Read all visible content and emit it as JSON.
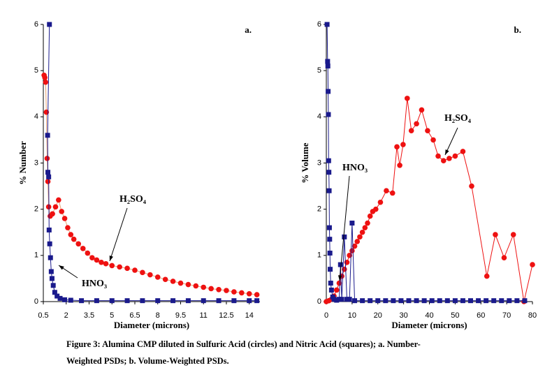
{
  "chart_data": [
    {
      "type": "scatter",
      "label": "a.",
      "xlabel": "Diameter (microns)",
      "ylabel": "% Number",
      "xlim": [
        0.5,
        14.7
      ],
      "ylim": [
        0,
        6
      ],
      "xticks": [
        0.5,
        2,
        3.5,
        5,
        6.5,
        8,
        9.5,
        11,
        12.5,
        14
      ],
      "yticks": [
        0,
        1,
        2,
        3,
        4,
        5,
        6
      ],
      "annotations": [
        "H₂SO₄",
        "HNO₃"
      ],
      "series": [
        {
          "name": "H₂SO₄",
          "color": "#ee1111",
          "line_color": "#e8a070",
          "marker": "circle",
          "x": [
            0.55,
            0.6,
            0.65,
            0.7,
            0.75,
            0.8,
            0.85,
            0.95,
            1.1,
            1.3,
            1.5,
            1.7,
            1.9,
            2.1,
            2.3,
            2.5,
            2.8,
            3.1,
            3.4,
            3.7,
            4.0,
            4.3,
            4.6,
            5.0,
            5.5,
            6.0,
            6.5,
            7.0,
            7.5,
            8.0,
            8.5,
            9.0,
            9.5,
            10.0,
            10.5,
            11.0,
            11.5,
            12.0,
            12.5,
            13.0,
            13.5,
            14.0,
            14.5
          ],
          "values": [
            4.9,
            4.85,
            4.75,
            4.1,
            3.1,
            2.6,
            2.05,
            1.85,
            1.9,
            2.05,
            2.2,
            1.95,
            1.8,
            1.6,
            1.45,
            1.35,
            1.25,
            1.15,
            1.05,
            0.95,
            0.9,
            0.85,
            0.82,
            0.78,
            0.75,
            0.72,
            0.68,
            0.63,
            0.58,
            0.53,
            0.48,
            0.44,
            0.4,
            0.37,
            0.34,
            0.31,
            0.28,
            0.26,
            0.24,
            0.21,
            0.19,
            0.17,
            0.15
          ]
        },
        {
          "name": "HNO₃",
          "color": "#1a1a8c",
          "line_color": "#1a1a8c",
          "marker": "square",
          "x": [
            0.9,
            0.78,
            0.8,
            0.85,
            0.88,
            0.92,
            0.97,
            1.02,
            1.07,
            1.15,
            1.25,
            1.4,
            1.6,
            1.9,
            2.3,
            3.0,
            4.0,
            5.0,
            6.0,
            7.0,
            8.0,
            9.0,
            10.0,
            11.0,
            12.0,
            13.0,
            14.0,
            14.5
          ],
          "values": [
            6,
            3.6,
            2.8,
            2.7,
            1.55,
            1.25,
            0.95,
            0.65,
            0.5,
            0.35,
            0.2,
            0.12,
            0.07,
            0.04,
            0.03,
            0.02,
            0.02,
            0.02,
            0.02,
            0.02,
            0.02,
            0.02,
            0.02,
            0.02,
            0.02,
            0.02,
            0.02,
            0.02
          ]
        }
      ]
    },
    {
      "type": "scatter",
      "label": "b.",
      "xlabel": "Diameter (microns)",
      "ylabel": "% Volume",
      "xlim": [
        0,
        80
      ],
      "ylim": [
        0,
        6
      ],
      "xticks": [
        0,
        10,
        20,
        30,
        40,
        50,
        60,
        70,
        80
      ],
      "yticks": [
        0,
        1,
        2,
        3,
        4,
        5,
        6
      ],
      "annotations": [
        "H₂SO₄",
        "HNO₃"
      ],
      "series": [
        {
          "name": "H₂SO₄",
          "color": "#ee1111",
          "line_color": "#ee1111",
          "marker": "circle",
          "x": [
            0,
            1,
            2,
            3,
            4,
            5,
            6,
            7,
            8,
            9,
            10,
            11,
            12,
            13,
            14,
            15,
            16,
            17,
            18,
            19.2,
            21,
            23.3,
            25.7,
            27.4,
            28.5,
            29.8,
            31.4,
            33,
            35,
            37,
            39.3,
            41.5,
            43.4,
            45.5,
            47.7,
            50,
            53,
            56.4,
            62.3,
            65.6,
            69,
            72.6,
            76.7,
            80
          ],
          "values": [
            0,
            0.02,
            0.05,
            0.12,
            0.25,
            0.4,
            0.55,
            0.7,
            0.85,
            1.0,
            1.1,
            1.2,
            1.3,
            1.4,
            1.5,
            1.6,
            1.7,
            1.85,
            1.95,
            2.0,
            2.15,
            2.4,
            2.35,
            3.35,
            2.95,
            3.4,
            4.4,
            3.7,
            3.85,
            4.15,
            3.7,
            3.5,
            3.15,
            3.05,
            3.1,
            3.15,
            3.25,
            2.5,
            0.55,
            1.45,
            0.95,
            1.45,
            0,
            0.8
          ]
        },
        {
          "name": "HNO₃",
          "color": "#1a1a8c",
          "line_color": "#1a1a8c",
          "marker": "square",
          "x": [
            0.3,
            0.5,
            0.6,
            0.7,
            0.8,
            0.9,
            1.0,
            1.1,
            1.2,
            1.3,
            1.4,
            1.5,
            1.7,
            2.0,
            2.5,
            3.0,
            4.0,
            5.0,
            5.5,
            6.0,
            7.0,
            8.0,
            9.0,
            10.0,
            11.0,
            14.0,
            17.0,
            20.0,
            23.0,
            26.0,
            29.0,
            32.0,
            35.0,
            38.0,
            41.0,
            44.0,
            47.0,
            50.0,
            53.0,
            56.0,
            59.0,
            62.0,
            65.0,
            68.0,
            71.0,
            74.0,
            77.0
          ],
          "values": [
            6,
            5.2,
            5.1,
            4.55,
            4.05,
            3.05,
            2.8,
            2.4,
            1.6,
            1.35,
            1.05,
            0.7,
            0.4,
            0.25,
            0.1,
            0.05,
            0.03,
            0.05,
            0.8,
            0.05,
            1.4,
            0.05,
            0.05,
            1.7,
            0.02,
            0.02,
            0.02,
            0.02,
            0.02,
            0.02,
            0.02,
            0.02,
            0.02,
            0.02,
            0.02,
            0.02,
            0.02,
            0.02,
            0.02,
            0.02,
            0.02,
            0.02,
            0.02,
            0.02,
            0.02,
            0.02,
            0.02
          ]
        }
      ]
    }
  ],
  "caption": [
    "Figure 3: Alumina CMP diluted in Sulfuric Acid (circles) and Nitric Acid (squares); a.  Number-",
    "Weighted PSDs;  b. Volume-Weighted PSDs."
  ]
}
